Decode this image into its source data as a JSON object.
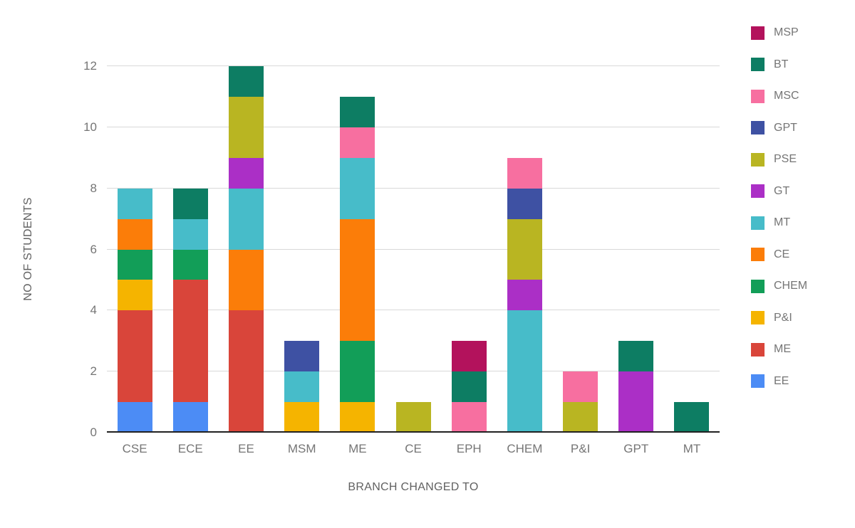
{
  "chart_data": {
    "type": "bar",
    "stacked": true,
    "title": "",
    "xlabel": "BRANCH CHANGED TO",
    "ylabel": "NO OF STUDENTS",
    "ylim": [
      0,
      12
    ],
    "yticks": [
      0,
      2,
      4,
      6,
      8,
      10,
      12
    ],
    "grid": true,
    "legend_position": "right",
    "categories": [
      "CSE",
      "ECE",
      "EE",
      "MSM",
      "ME",
      "CE",
      "EPH",
      "CHEM",
      "P&I",
      "GPT",
      "MT"
    ],
    "series": [
      {
        "name": "EE",
        "color": "#4c8cf5",
        "values": [
          1,
          1,
          0,
          0,
          0,
          0,
          0,
          0,
          0,
          0,
          0
        ]
      },
      {
        "name": "ME",
        "color": "#d9453a",
        "values": [
          3,
          4,
          4,
          0,
          0,
          0,
          0,
          0,
          0,
          0,
          0
        ]
      },
      {
        "name": "P&I",
        "color": "#f5b400",
        "values": [
          1,
          0,
          0,
          1,
          1,
          0,
          0,
          0,
          0,
          0,
          0
        ]
      },
      {
        "name": "CHEM",
        "color": "#129e58",
        "values": [
          1,
          1,
          0,
          0,
          2,
          0,
          0,
          0,
          0,
          0,
          0
        ]
      },
      {
        "name": "CE",
        "color": "#fb7d09",
        "values": [
          1,
          0,
          2,
          0,
          4,
          0,
          0,
          0,
          0,
          0,
          0
        ]
      },
      {
        "name": "MT",
        "color": "#47bcc9",
        "values": [
          1,
          1,
          2,
          1,
          2,
          0,
          0,
          4,
          0,
          0,
          0
        ]
      },
      {
        "name": "GT",
        "color": "#ab2fc6",
        "values": [
          0,
          0,
          1,
          0,
          0,
          0,
          0,
          1,
          0,
          2,
          0
        ]
      },
      {
        "name": "PSE",
        "color": "#b9b522",
        "values": [
          0,
          0,
          2,
          0,
          0,
          1,
          0,
          2,
          1,
          0,
          0
        ]
      },
      {
        "name": "GPT",
        "color": "#3e51a3",
        "values": [
          0,
          0,
          0,
          1,
          0,
          0,
          0,
          1,
          0,
          0,
          0
        ]
      },
      {
        "name": "MSC",
        "color": "#f76fa0",
        "values": [
          0,
          0,
          0,
          0,
          1,
          0,
          1,
          1,
          1,
          0,
          0
        ]
      },
      {
        "name": "BT",
        "color": "#0d7d63",
        "values": [
          0,
          1,
          1,
          0,
          1,
          0,
          1,
          0,
          0,
          1,
          1
        ]
      },
      {
        "name": "MSP",
        "color": "#b3125c",
        "values": [
          0,
          0,
          0,
          0,
          0,
          0,
          1,
          0,
          0,
          0,
          0
        ]
      }
    ],
    "legend_order": [
      "MSP",
      "BT",
      "MSC",
      "GPT",
      "PSE",
      "GT",
      "MT",
      "CE",
      "CHEM",
      "P&I",
      "ME",
      "EE"
    ]
  },
  "colors": {
    "background": "#ffffff",
    "gridline": "#d9d9d9",
    "baseline": "#212121",
    "tick_text": "#757575",
    "axis_title_text": "#616161"
  }
}
